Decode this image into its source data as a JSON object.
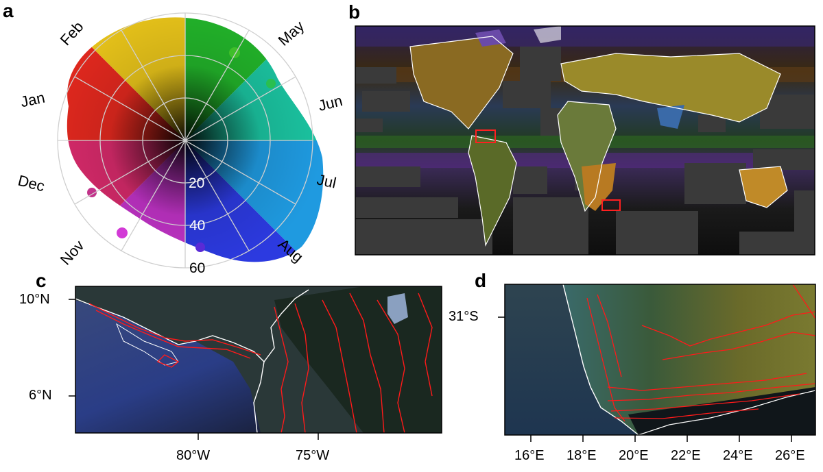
{
  "panels": {
    "a": "a",
    "b": "b",
    "c": "c",
    "d": "d"
  },
  "polar": {
    "months": [
      "Jan",
      "Feb",
      "May",
      "Jun",
      "Jul",
      "Aug",
      "Nov",
      "Dec"
    ],
    "radial_labels": [
      "20",
      "40",
      "60"
    ]
  },
  "map_c": {
    "y_ticks": [
      "10°N",
      "6°N"
    ],
    "x_ticks": [
      "80°W",
      "75°W"
    ]
  },
  "map_d": {
    "y_ticks": [
      "31°S"
    ],
    "x_ticks": [
      "16°E",
      "18°E",
      "20°E",
      "22°E",
      "24°E",
      "26°E"
    ]
  },
  "colors": {
    "coastline": "#ffffff",
    "elevation_contour": "#ff1a1a",
    "highlight_box": "#ff2020",
    "ocean_mask": "#3a3a3a"
  }
}
